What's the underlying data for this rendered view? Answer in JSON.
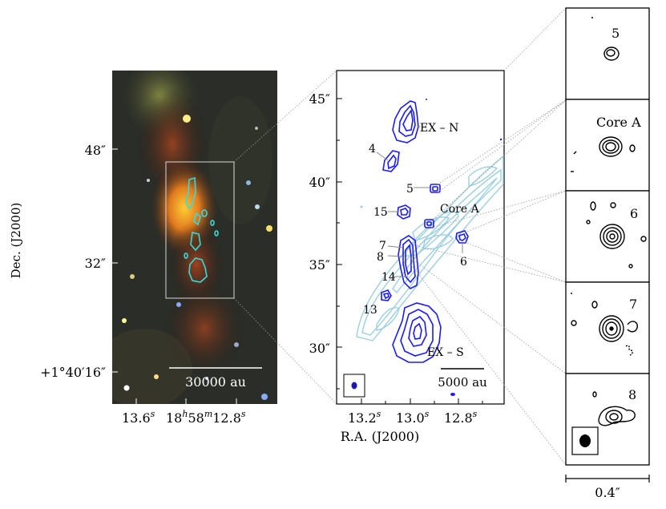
{
  "left_panel": {
    "dec_axis_label": "Dec. (J2000)",
    "dec_ticks": [
      "48″",
      "32″",
      "+1°40′16″"
    ],
    "ra_ticks": [
      "13.6",
      "18",
      "58",
      "12.8"
    ],
    "scale_bar_label": "30000 au"
  },
  "middle_panel": {
    "dec_ticks": [
      "45″",
      "40″",
      "35″",
      "30″"
    ],
    "ra_ticks": [
      "13.2",
      "13.0",
      "12.8"
    ],
    "ra_axis_label": "R.A. (J2000)",
    "source_labels": [
      "EX – N",
      "4",
      "5",
      "15",
      "Core A",
      "7",
      "8",
      "6",
      "14",
      "13",
      "EX – S"
    ],
    "scale_bar_label": "5000 au"
  },
  "insets": {
    "labels": [
      "5",
      "Core A",
      "6",
      "7",
      "8"
    ],
    "scale_bar_label": "0.4″"
  },
  "colors": {
    "contour_dark": "#1a1aff",
    "contour_light": "#9ccfe0",
    "contour_cyan": "#33dddd",
    "inset_contour": "#000000"
  }
}
